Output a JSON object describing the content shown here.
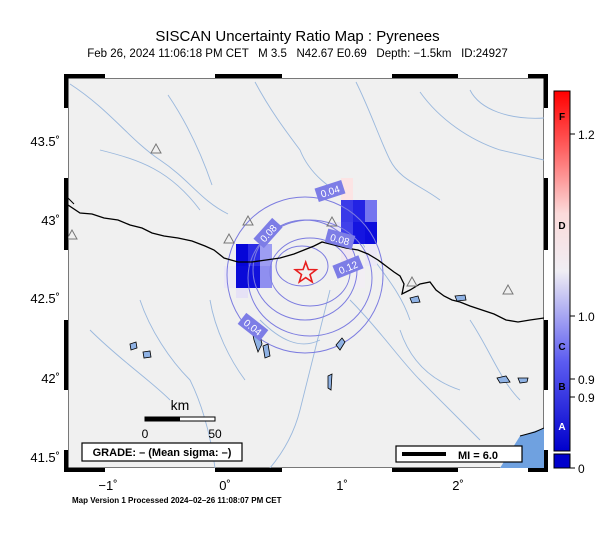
{
  "header": {
    "title": "SISCAN Uncertainty Ratio Map : Pyrenees",
    "subtitle": "Feb 26, 2024 11:06:18 PM CET   M 3.5   N42.67 E0.69   Depth: −1.5km   ID:24927"
  },
  "map": {
    "lat_ticks": [
      "43.5˚",
      "43˚",
      "42.5˚",
      "42˚",
      "41.5˚"
    ],
    "lon_ticks": [
      "−1˚",
      "0˚",
      "1˚",
      "2˚"
    ],
    "contour_labels": [
      "0.04",
      "0.08",
      "0.08",
      "0.12",
      "0.04"
    ],
    "epicenter": {
      "lat": 42.67,
      "lon": 0.69
    },
    "epicenter_icon": "star-icon",
    "station_icon": "triangle-icon"
  },
  "scale_bar": {
    "unit": "km",
    "start": "0",
    "end": "50"
  },
  "grade_box": "GRADE: – (Mean sigma: –)",
  "mi_box": "MI = 6.0",
  "colorbar": {
    "grades": [
      "F",
      "D",
      "C",
      "B",
      "A"
    ],
    "values": [
      "1.2",
      "1.0",
      "0.9",
      "0.9",
      "0"
    ],
    "colors": {
      "low": "#0000cc",
      "mid": "#f5f5f5",
      "high": "#ff0000"
    }
  },
  "footer": "Map Version 1 Processed 2024–02–26 11:08:07 PM CET"
}
